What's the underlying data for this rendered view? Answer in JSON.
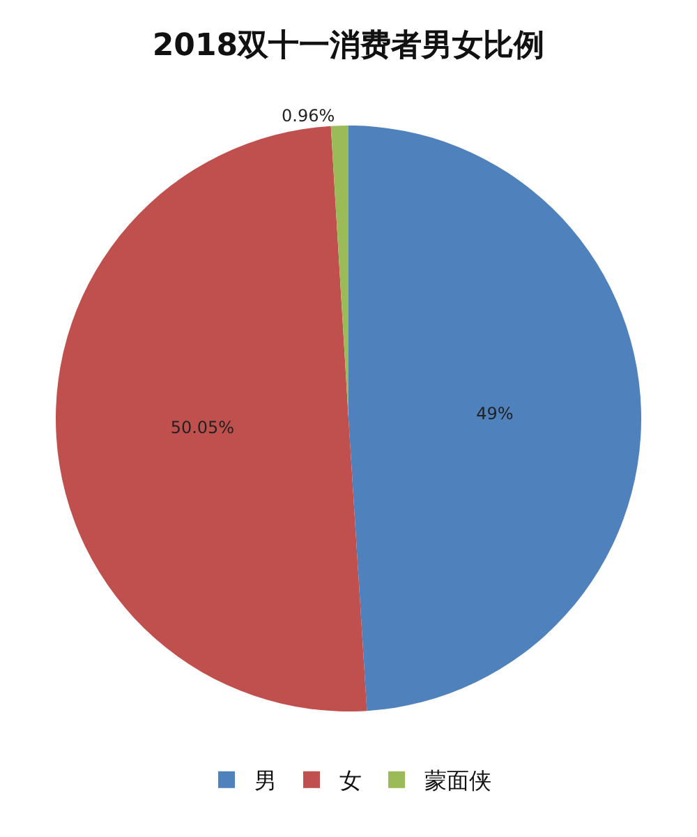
{
  "chart_data": {
    "type": "pie",
    "title": "2018双十一消费者男女比例",
    "categories": [
      "男",
      "女",
      "蒙面侠"
    ],
    "values": [
      49,
      50.05,
      0.96
    ],
    "colors": [
      "#4f81bd",
      "#c0504d",
      "#9bbb59"
    ],
    "value_labels": [
      "49%",
      "50.05%",
      "0.96%"
    ],
    "legend": "bottom"
  }
}
